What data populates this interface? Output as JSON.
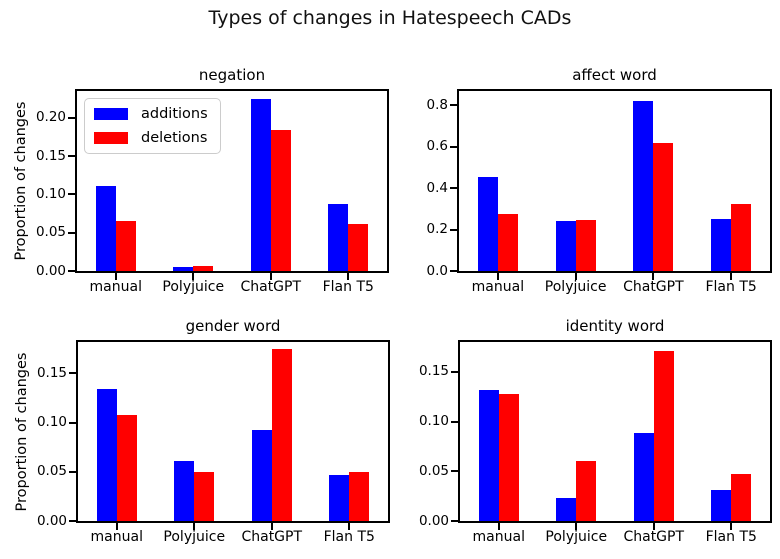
{
  "figure": {
    "title": "Types of changes in Hatespeech CADs",
    "background": "#ffffff"
  },
  "colors": {
    "additions": "#0000ff",
    "deletions": "#ff0000",
    "axis": "#000000"
  },
  "legend": {
    "position": "upper-left-of-first-subplot",
    "entries": [
      {
        "label": "additions",
        "color": "#0000ff"
      },
      {
        "label": "deletions",
        "color": "#ff0000"
      }
    ]
  },
  "chart_data": [
    {
      "type": "bar",
      "title": "negation",
      "xlabel": "",
      "ylabel": "Proportion of changes",
      "categories": [
        "manual",
        "Polyjuice",
        "ChatGPT",
        "Flan T5"
      ],
      "series": [
        {
          "name": "additions",
          "color": "#0000ff",
          "values": [
            0.111,
            0.005,
            0.224,
            0.087
          ]
        },
        {
          "name": "deletions",
          "color": "#ff0000",
          "values": [
            0.065,
            0.006,
            0.184,
            0.061
          ]
        }
      ],
      "ylim": [
        0,
        0.235
      ],
      "yticks": [
        0.0,
        0.05,
        0.1,
        0.15,
        0.2
      ],
      "ytick_labels": [
        "0.00",
        "0.05",
        "0.10",
        "0.15",
        "0.20"
      ],
      "grid": false,
      "legend": true
    },
    {
      "type": "bar",
      "title": "affect word",
      "xlabel": "",
      "ylabel": "",
      "categories": [
        "manual",
        "Polyjuice",
        "ChatGPT",
        "Flan T5"
      ],
      "series": [
        {
          "name": "additions",
          "color": "#0000ff",
          "values": [
            0.455,
            0.24,
            0.82,
            0.25
          ]
        },
        {
          "name": "deletions",
          "color": "#ff0000",
          "values": [
            0.275,
            0.245,
            0.62,
            0.325
          ]
        }
      ],
      "ylim": [
        0,
        0.87
      ],
      "yticks": [
        0.0,
        0.2,
        0.4,
        0.6,
        0.8
      ],
      "ytick_labels": [
        "0.0",
        "0.2",
        "0.4",
        "0.6",
        "0.8"
      ],
      "grid": false,
      "legend": false
    },
    {
      "type": "bar",
      "title": "gender word",
      "xlabel": "",
      "ylabel": "Proportion of changes",
      "categories": [
        "manual",
        "Polyjuice",
        "ChatGPT",
        "Flan T5"
      ],
      "series": [
        {
          "name": "additions",
          "color": "#0000ff",
          "values": [
            0.134,
            0.061,
            0.093,
            0.047
          ]
        },
        {
          "name": "deletions",
          "color": "#ff0000",
          "values": [
            0.108,
            0.05,
            0.175,
            0.05
          ]
        }
      ],
      "ylim": [
        0,
        0.182
      ],
      "yticks": [
        0.0,
        0.05,
        0.1,
        0.15
      ],
      "ytick_labels": [
        "0.00",
        "0.05",
        "0.10",
        "0.15"
      ],
      "grid": false,
      "legend": false
    },
    {
      "type": "bar",
      "title": "identity word",
      "xlabel": "",
      "ylabel": "",
      "categories": [
        "manual",
        "Polyjuice",
        "ChatGPT",
        "Flan T5"
      ],
      "series": [
        {
          "name": "additions",
          "color": "#0000ff",
          "values": [
            0.132,
            0.023,
            0.089,
            0.031
          ]
        },
        {
          "name": "deletions",
          "color": "#ff0000",
          "values": [
            0.128,
            0.06,
            0.171,
            0.047
          ]
        }
      ],
      "ylim": [
        0,
        0.18
      ],
      "yticks": [
        0.0,
        0.05,
        0.1,
        0.15
      ],
      "ytick_labels": [
        "0.00",
        "0.05",
        "0.10",
        "0.15"
      ],
      "grid": false,
      "legend": false
    }
  ]
}
